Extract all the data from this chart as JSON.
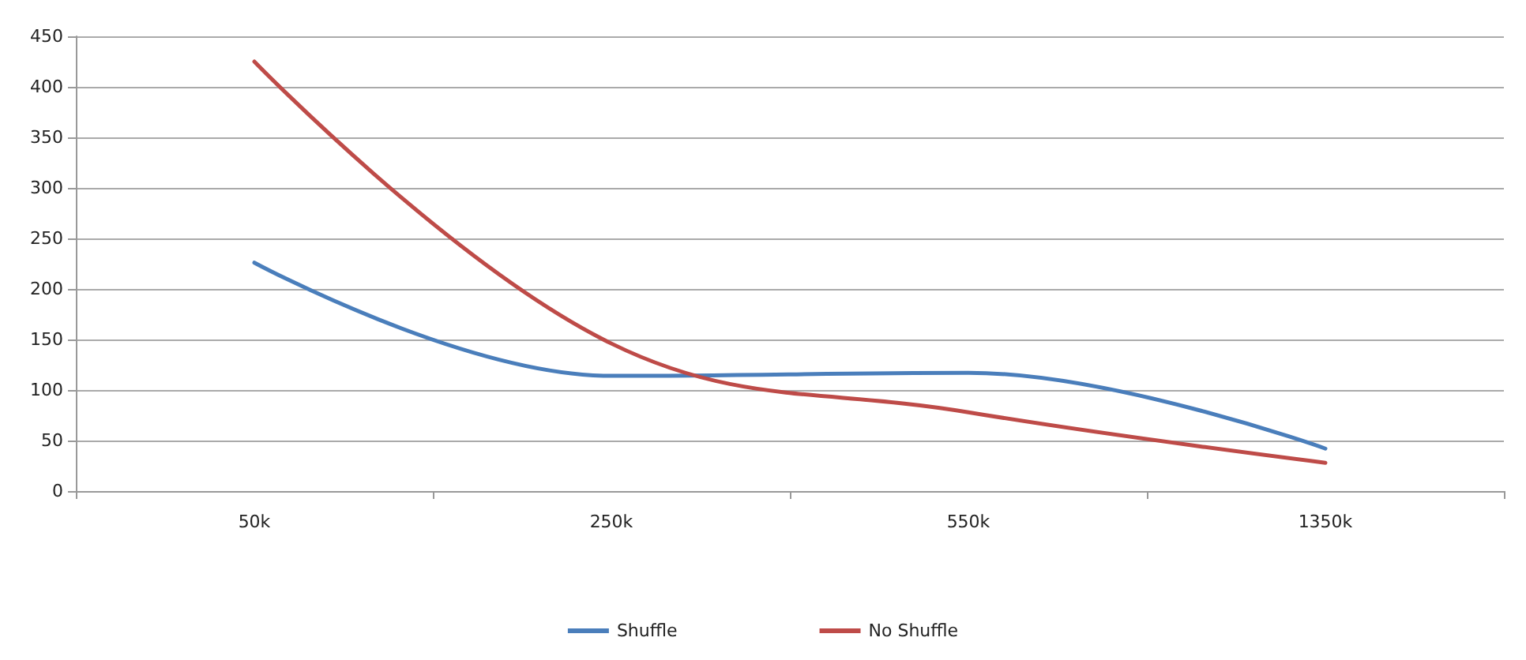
{
  "chart_data": {
    "type": "line",
    "categories": [
      "50k",
      "250k",
      "550k",
      "1350k"
    ],
    "series": [
      {
        "name": "Shuffle",
        "color": "#4a7ebb",
        "values": [
          226,
          114,
          117,
          42
        ]
      },
      {
        "name": "No Shuffle",
        "color": "#be4b48",
        "values": [
          425,
          146,
          78,
          28
        ]
      }
    ],
    "ylim": [
      0,
      450
    ],
    "yticks": [
      0,
      50,
      100,
      150,
      200,
      250,
      300,
      350,
      400,
      450
    ],
    "grid": "y",
    "legend": "bottom",
    "marker": "none",
    "line_style": "solid"
  }
}
